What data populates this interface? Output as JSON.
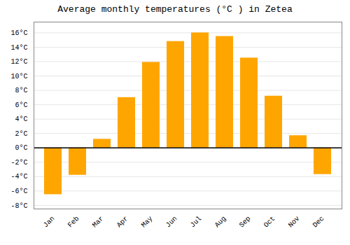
{
  "chart_data": {
    "type": "bar",
    "title": "Average monthly temperatures (°C ) in Zetea",
    "categories": [
      "Jan",
      "Feb",
      "Mar",
      "Apr",
      "May",
      "Jun",
      "Jul",
      "Aug",
      "Sep",
      "Oct",
      "Nov",
      "Dec"
    ],
    "values": [
      -6.5,
      -3.8,
      1.2,
      7.0,
      11.9,
      14.8,
      16.0,
      15.5,
      12.5,
      7.2,
      1.7,
      -3.7
    ],
    "color": "#FFA500",
    "ylim": [
      -8.5,
      17.5
    ],
    "yticks": [
      {
        "value": -8,
        "label": "-8°C"
      },
      {
        "value": -6,
        "label": "-6°C"
      },
      {
        "value": -4,
        "label": "-4°C"
      },
      {
        "value": -2,
        "label": "-2°C"
      },
      {
        "value": 0,
        "label": "0°C"
      },
      {
        "value": 2,
        "label": "2°C"
      },
      {
        "value": 4,
        "label": "4°C"
      },
      {
        "value": 6,
        "label": "6°C"
      },
      {
        "value": 8,
        "label": "8°C"
      },
      {
        "value": 10,
        "label": "10°C"
      },
      {
        "value": 12,
        "label": "12°C"
      },
      {
        "value": 14,
        "label": "14°C"
      },
      {
        "value": 16,
        "label": "16°C"
      }
    ],
    "grid": true
  }
}
